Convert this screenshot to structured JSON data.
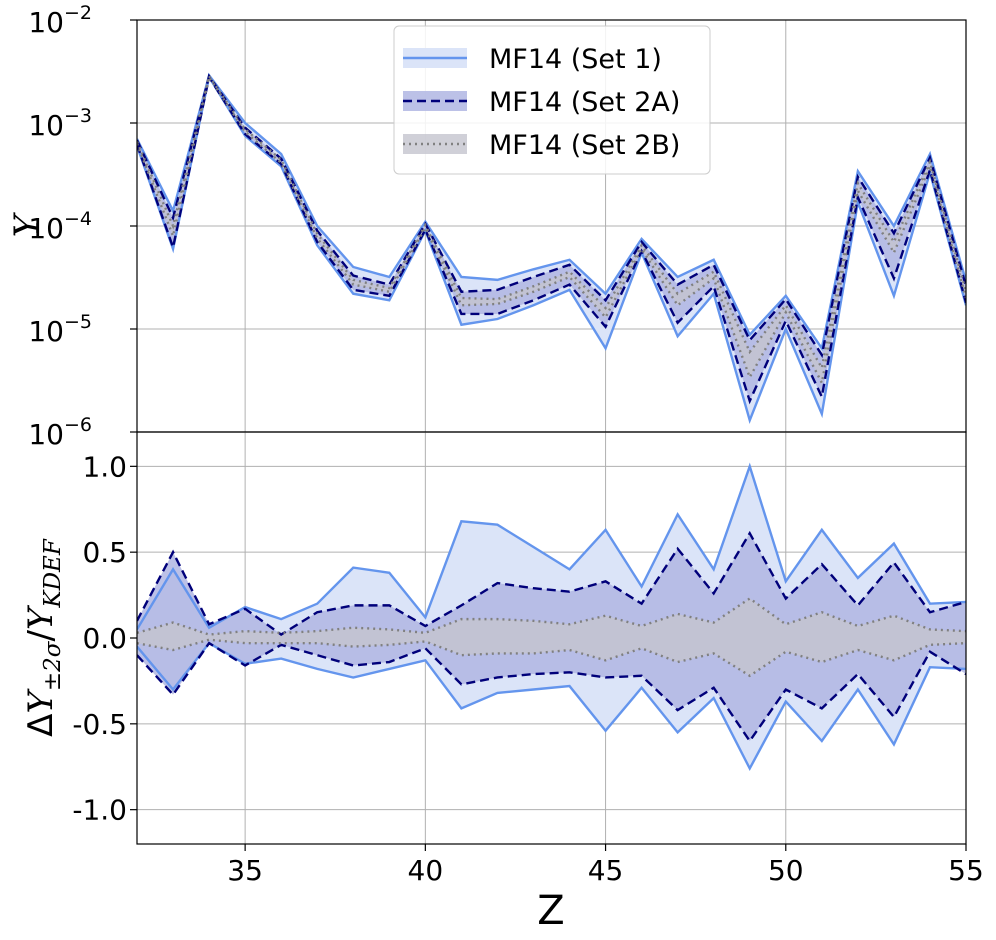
{
  "chart_data": {
    "type": "area",
    "x": [
      32,
      33,
      34,
      35,
      36,
      37,
      38,
      39,
      40,
      41,
      42,
      43,
      44,
      45,
      46,
      47,
      48,
      49,
      50,
      51,
      52,
      53,
      54,
      55
    ],
    "xlim": [
      32,
      55
    ],
    "xticks": [
      35,
      40,
      45,
      50,
      55
    ],
    "xlabel": "Z",
    "legend": {
      "placement": "top-center",
      "entries": [
        "MF14 (Set 1)",
        "MF14 (Set 2A)",
        "MF14 (Set 2B)"
      ]
    },
    "colors": {
      "set1_line": "#6495ED",
      "set1_fill": "#dbe4f8",
      "set2a_line": "#00007a",
      "set2a_fill": "#b0b6e3",
      "set2b_line": "#808080",
      "set2b_fill": "#c4c4ce",
      "grid": "#b0b0b0"
    },
    "top_panel": {
      "ylabel": "Y",
      "yscale": "log",
      "ylim": [
        1e-06,
        0.01
      ],
      "yticks": [
        {
          "value": 1e-06,
          "base": "10",
          "exp": "−6"
        },
        {
          "value": 1e-05,
          "base": "10",
          "exp": "−5"
        },
        {
          "value": 0.0001,
          "base": "10",
          "exp": "−4"
        },
        {
          "value": 0.001,
          "base": "10",
          "exp": "−3"
        },
        {
          "value": 0.01,
          "base": "10",
          "exp": "−2"
        }
      ],
      "series": [
        {
          "name": "MF14 (Set 1)",
          "upper": [
            0.0007,
            0.00014,
            0.0029,
            0.001,
            0.0005,
            0.0001,
            4e-05,
            3.2e-05,
            0.00011,
            3.2e-05,
            3e-05,
            3.8e-05,
            4.7e-05,
            2.2e-05,
            7.5e-05,
            3.2e-05,
            4.7e-05,
            8.8e-06,
            2.1e-05,
            6.5e-06,
            0.00034,
            0.0001,
            0.0005,
            2.9e-05
          ],
          "lower": [
            0.0006,
            6e-05,
            0.0028,
            0.00075,
            0.00038,
            6.5e-05,
            2.2e-05,
            1.9e-05,
            9e-05,
            1.1e-05,
            1.25e-05,
            1.7e-05,
            2.4e-05,
            6.5e-06,
            5.5e-05,
            8.5e-06,
            2.2e-05,
            1.3e-06,
            1e-05,
            1.5e-06,
            0.00017,
            2.1e-05,
            0.00033,
            1.7e-05
          ]
        },
        {
          "name": "MF14 (Set 2A)",
          "upper": [
            0.00068,
            0.00012,
            0.00285,
            0.0009,
            0.00045,
            9e-05,
            3.3e-05,
            2.7e-05,
            0.000105,
            2.3e-05,
            2.4e-05,
            3.2e-05,
            4.2e-05,
            1.9e-05,
            7e-05,
            2.7e-05,
            4.2e-05,
            7.8e-06,
            1.95e-05,
            5.6e-06,
            0.0003,
            8.5e-05,
            0.00046,
            2.6e-05
          ],
          "lower": [
            0.00062,
            6.2e-05,
            0.0028,
            0.00078,
            0.0004,
            7e-05,
            2.4e-05,
            2.1e-05,
            9.2e-05,
            1.4e-05,
            1.4e-05,
            1.9e-05,
            2.7e-05,
            1.05e-05,
            5.7e-05,
            1.15e-05,
            2.6e-05,
            2e-06,
            1.2e-05,
            2.2e-06,
            0.00019,
            3.1e-05,
            0.00035,
            1.8e-05
          ]
        },
        {
          "name": "MF14 (Set 2B)",
          "upper": [
            0.00066,
            0.0001,
            0.00285,
            0.00087,
            0.00044,
            8.4e-05,
            3e-05,
            2.5e-05,
            0.000102,
            2e-05,
            1.95e-05,
            2.6e-05,
            3.6e-05,
            1.6e-05,
            6.5e-05,
            2.2e-05,
            3.6e-05,
            6e-06,
            1.7e-05,
            4.2e-06,
            0.00026,
            7e-05,
            0.00042,
            2.3e-05
          ],
          "lower": [
            0.00063,
            8e-05,
            0.0028,
            0.00082,
            0.00041,
            7.6e-05,
            2.7e-05,
            2.3e-05,
            9.6e-05,
            1.7e-05,
            1.75e-05,
            2.3e-05,
            3.2e-05,
            1.3e-05,
            6e-05,
            1.7e-05,
            3.1e-05,
            3.4e-06,
            1.45e-05,
            3e-06,
            0.00022,
            5.5e-05,
            0.00038,
            2e-05
          ]
        }
      ]
    },
    "bottom_panel": {
      "ylabel_parts": {
        "delta": "Δ",
        "y1": "Y",
        "sub1": "±2σ",
        "slash": "/",
        "y2": "Y",
        "sub2": "KDEF"
      },
      "ylim": [
        -1.2,
        1.2
      ],
      "yticks": [
        {
          "value": -1.0,
          "label": "-1.0"
        },
        {
          "value": -0.5,
          "label": "-0.5"
        },
        {
          "value": 0.0,
          "label": "0.0"
        },
        {
          "value": 0.5,
          "label": "0.5"
        },
        {
          "value": 1.0,
          "label": "1.0"
        }
      ],
      "series": [
        {
          "name": "MF14 (Set 1)",
          "upper": [
            0.05,
            0.4,
            0.06,
            0.18,
            0.11,
            0.2,
            0.41,
            0.38,
            0.12,
            0.68,
            0.66,
            0.53,
            0.4,
            0.63,
            0.3,
            0.72,
            0.4,
            1.0,
            0.33,
            0.63,
            0.35,
            0.55,
            0.2,
            0.21
          ],
          "lower": [
            -0.05,
            -0.3,
            -0.03,
            -0.15,
            -0.12,
            -0.18,
            -0.23,
            -0.18,
            -0.13,
            -0.41,
            -0.32,
            -0.3,
            -0.28,
            -0.54,
            -0.29,
            -0.55,
            -0.35,
            -0.76,
            -0.37,
            -0.6,
            -0.3,
            -0.62,
            -0.17,
            -0.18
          ]
        },
        {
          "name": "MF14 (Set 2A)",
          "upper": [
            0.1,
            0.5,
            0.08,
            0.17,
            0.02,
            0.15,
            0.19,
            0.19,
            0.07,
            0.19,
            0.32,
            0.29,
            0.27,
            0.33,
            0.2,
            0.52,
            0.26,
            0.61,
            0.23,
            0.43,
            0.19,
            0.44,
            0.15,
            0.21
          ],
          "lower": [
            -0.1,
            -0.33,
            -0.03,
            -0.16,
            -0.04,
            -0.1,
            -0.16,
            -0.14,
            -0.06,
            -0.27,
            -0.23,
            -0.21,
            -0.2,
            -0.23,
            -0.22,
            -0.42,
            -0.29,
            -0.6,
            -0.3,
            -0.41,
            -0.21,
            -0.46,
            -0.08,
            -0.21
          ]
        },
        {
          "name": "MF14 (Set 2B)",
          "upper": [
            0.03,
            0.09,
            0.02,
            0.04,
            0.03,
            0.04,
            0.06,
            0.05,
            0.03,
            0.11,
            0.11,
            0.1,
            0.08,
            0.13,
            0.07,
            0.14,
            0.09,
            0.23,
            0.08,
            0.15,
            0.07,
            0.13,
            0.05,
            0.04
          ],
          "lower": [
            -0.03,
            -0.07,
            -0.01,
            -0.03,
            -0.03,
            -0.03,
            -0.05,
            -0.04,
            -0.02,
            -0.1,
            -0.09,
            -0.09,
            -0.07,
            -0.13,
            -0.06,
            -0.14,
            -0.09,
            -0.22,
            -0.08,
            -0.14,
            -0.07,
            -0.13,
            -0.04,
            -0.03
          ]
        }
      ]
    }
  }
}
